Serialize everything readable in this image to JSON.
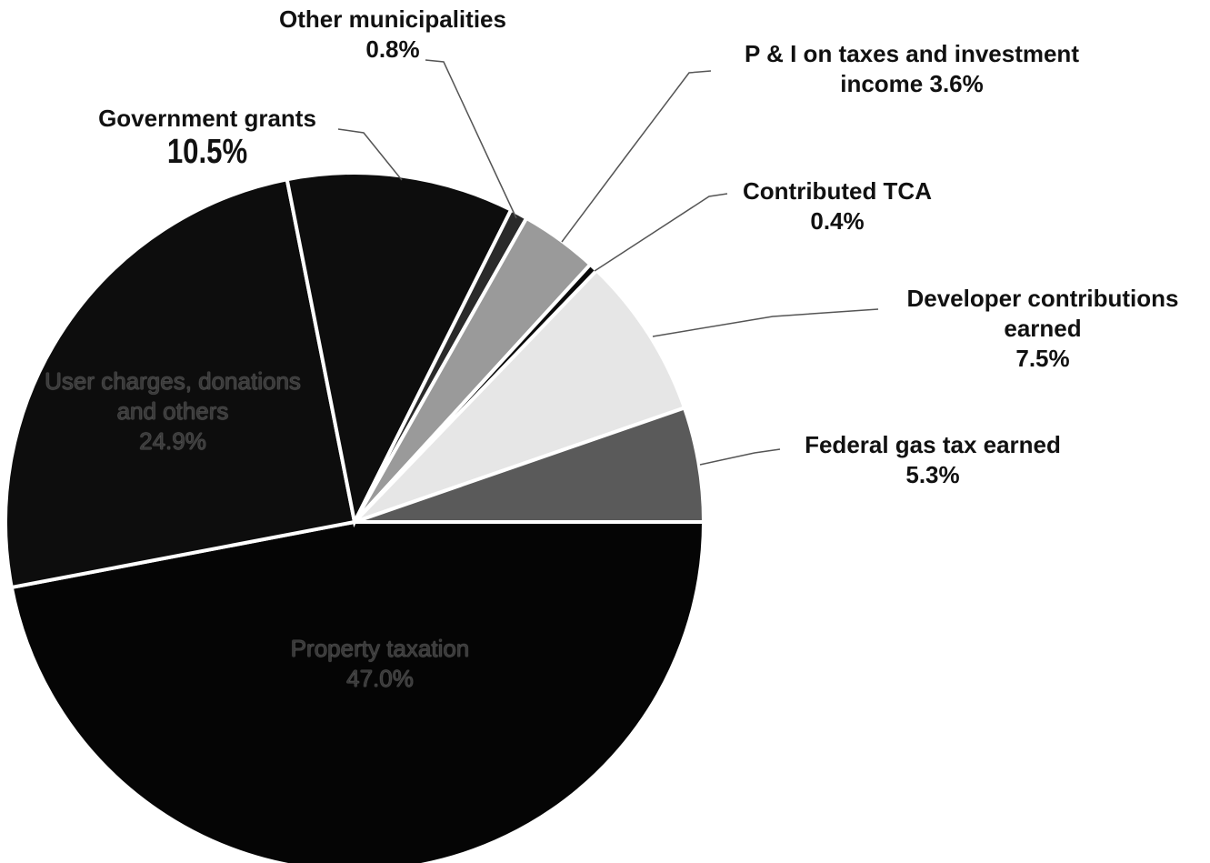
{
  "chart_data": {
    "type": "pie",
    "categories": [
      "Federal gas tax earned",
      "Developer contributions earned",
      "Contributed TCA",
      "P & I on taxes and investment income",
      "Other municipalities",
      "Government grants",
      "User charges, donations and others",
      "Property taxation"
    ],
    "values": [
      5.3,
      7.5,
      0.4,
      3.6,
      0.8,
      10.5,
      24.9,
      47.0
    ],
    "value_labels": [
      "5.3%",
      "7.5%",
      "0.4%",
      "3.6%",
      "0.8%",
      "10.5%",
      "24.9%",
      "47.0%"
    ],
    "colors": [
      "#5a5a5a",
      "#e6e6e6",
      "#0a0a0a",
      "#9a9a9a",
      "#2a2a2a",
      "#0d0d0d",
      "#0d0d0d",
      "#050505"
    ]
  }
}
